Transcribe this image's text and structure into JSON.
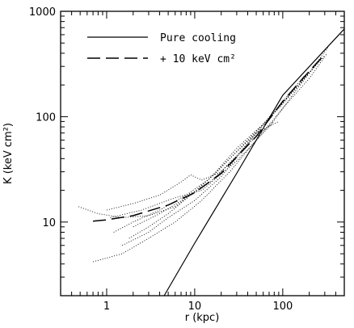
{
  "chart_data": {
    "type": "line",
    "xlabel": "r (kpc)",
    "ylabel": "K  (keV cm²)",
    "xscale": "log",
    "yscale": "log",
    "xlim": [
      0.3,
      500
    ],
    "ylim": [
      2,
      1000
    ],
    "x_tick_labels": [
      {
        "value": 1,
        "label": "1"
      },
      {
        "value": 10,
        "label": "10"
      },
      {
        "value": 100,
        "label": "100"
      }
    ],
    "y_tick_labels": [
      {
        "value": 10,
        "label": "10"
      },
      {
        "value": 100,
        "label": "100"
      },
      {
        "value": 1000,
        "label": "1000"
      }
    ],
    "legend_position": "top-left",
    "series": [
      {
        "name": "Pure cooling",
        "style": "solid",
        "x": [
          4.5,
          10,
          30,
          100,
          300,
          500
        ],
        "y": [
          2,
          6.3,
          29,
          160,
          430,
          680
        ]
      },
      {
        "name": "+ 10 keV cm²",
        "style": "long-dash",
        "x": [
          0.7,
          1,
          2,
          5,
          10,
          20,
          50,
          100,
          200,
          300
        ],
        "y": [
          10.2,
          10.5,
          11.5,
          14.5,
          19,
          29,
          65,
          140,
          270,
          390
        ]
      },
      {
        "name": "",
        "style": "dotted",
        "x": [
          0.48,
          0.8,
          1.5,
          3,
          6,
          12,
          25,
          50,
          90
        ],
        "y": [
          14,
          12,
          11,
          11.5,
          14,
          22,
          40,
          70,
          90
        ]
      },
      {
        "name": "",
        "style": "dotted",
        "x": [
          0.7,
          1.5,
          3,
          6,
          12,
          25,
          50,
          100,
          200,
          320
        ],
        "y": [
          4.2,
          5,
          7,
          10,
          16,
          30,
          60,
          120,
          230,
          400
        ]
      },
      {
        "name": "",
        "style": "dotted",
        "x": [
          1.2,
          2,
          4,
          8,
          15,
          30,
          60,
          120
        ],
        "y": [
          8,
          10,
          13,
          18,
          26,
          50,
          85,
          160
        ]
      },
      {
        "name": "",
        "style": "dotted",
        "x": [
          1,
          2,
          4,
          7,
          9,
          12,
          20,
          40,
          80
        ],
        "y": [
          13,
          15,
          18,
          24,
          28,
          25,
          30,
          55,
          90
        ]
      },
      {
        "name": "",
        "style": "dotted",
        "x": [
          1.5,
          3,
          5,
          10,
          20,
          40,
          80,
          150,
          300
        ],
        "y": [
          6,
          8,
          11,
          16,
          27,
          55,
          110,
          200,
          380
        ]
      },
      {
        "name": "",
        "style": "dotted",
        "x": [
          2,
          4,
          8,
          15,
          30,
          60,
          100,
          180
        ],
        "y": [
          9,
          12,
          17,
          24,
          42,
          85,
          140,
          250
        ]
      },
      {
        "name": "",
        "style": "dotted",
        "x": [
          1.1,
          2.5,
          6,
          12,
          30,
          70,
          150,
          280
        ],
        "y": [
          11,
          13,
          17,
          20,
          38,
          80,
          190,
          370
        ]
      },
      {
        "name": "",
        "style": "dotted",
        "x": [
          1.8,
          3,
          5,
          9,
          18,
          40,
          90,
          200,
          330
        ],
        "y": [
          7,
          9,
          12,
          18,
          30,
          60,
          120,
          260,
          460
        ]
      }
    ]
  }
}
